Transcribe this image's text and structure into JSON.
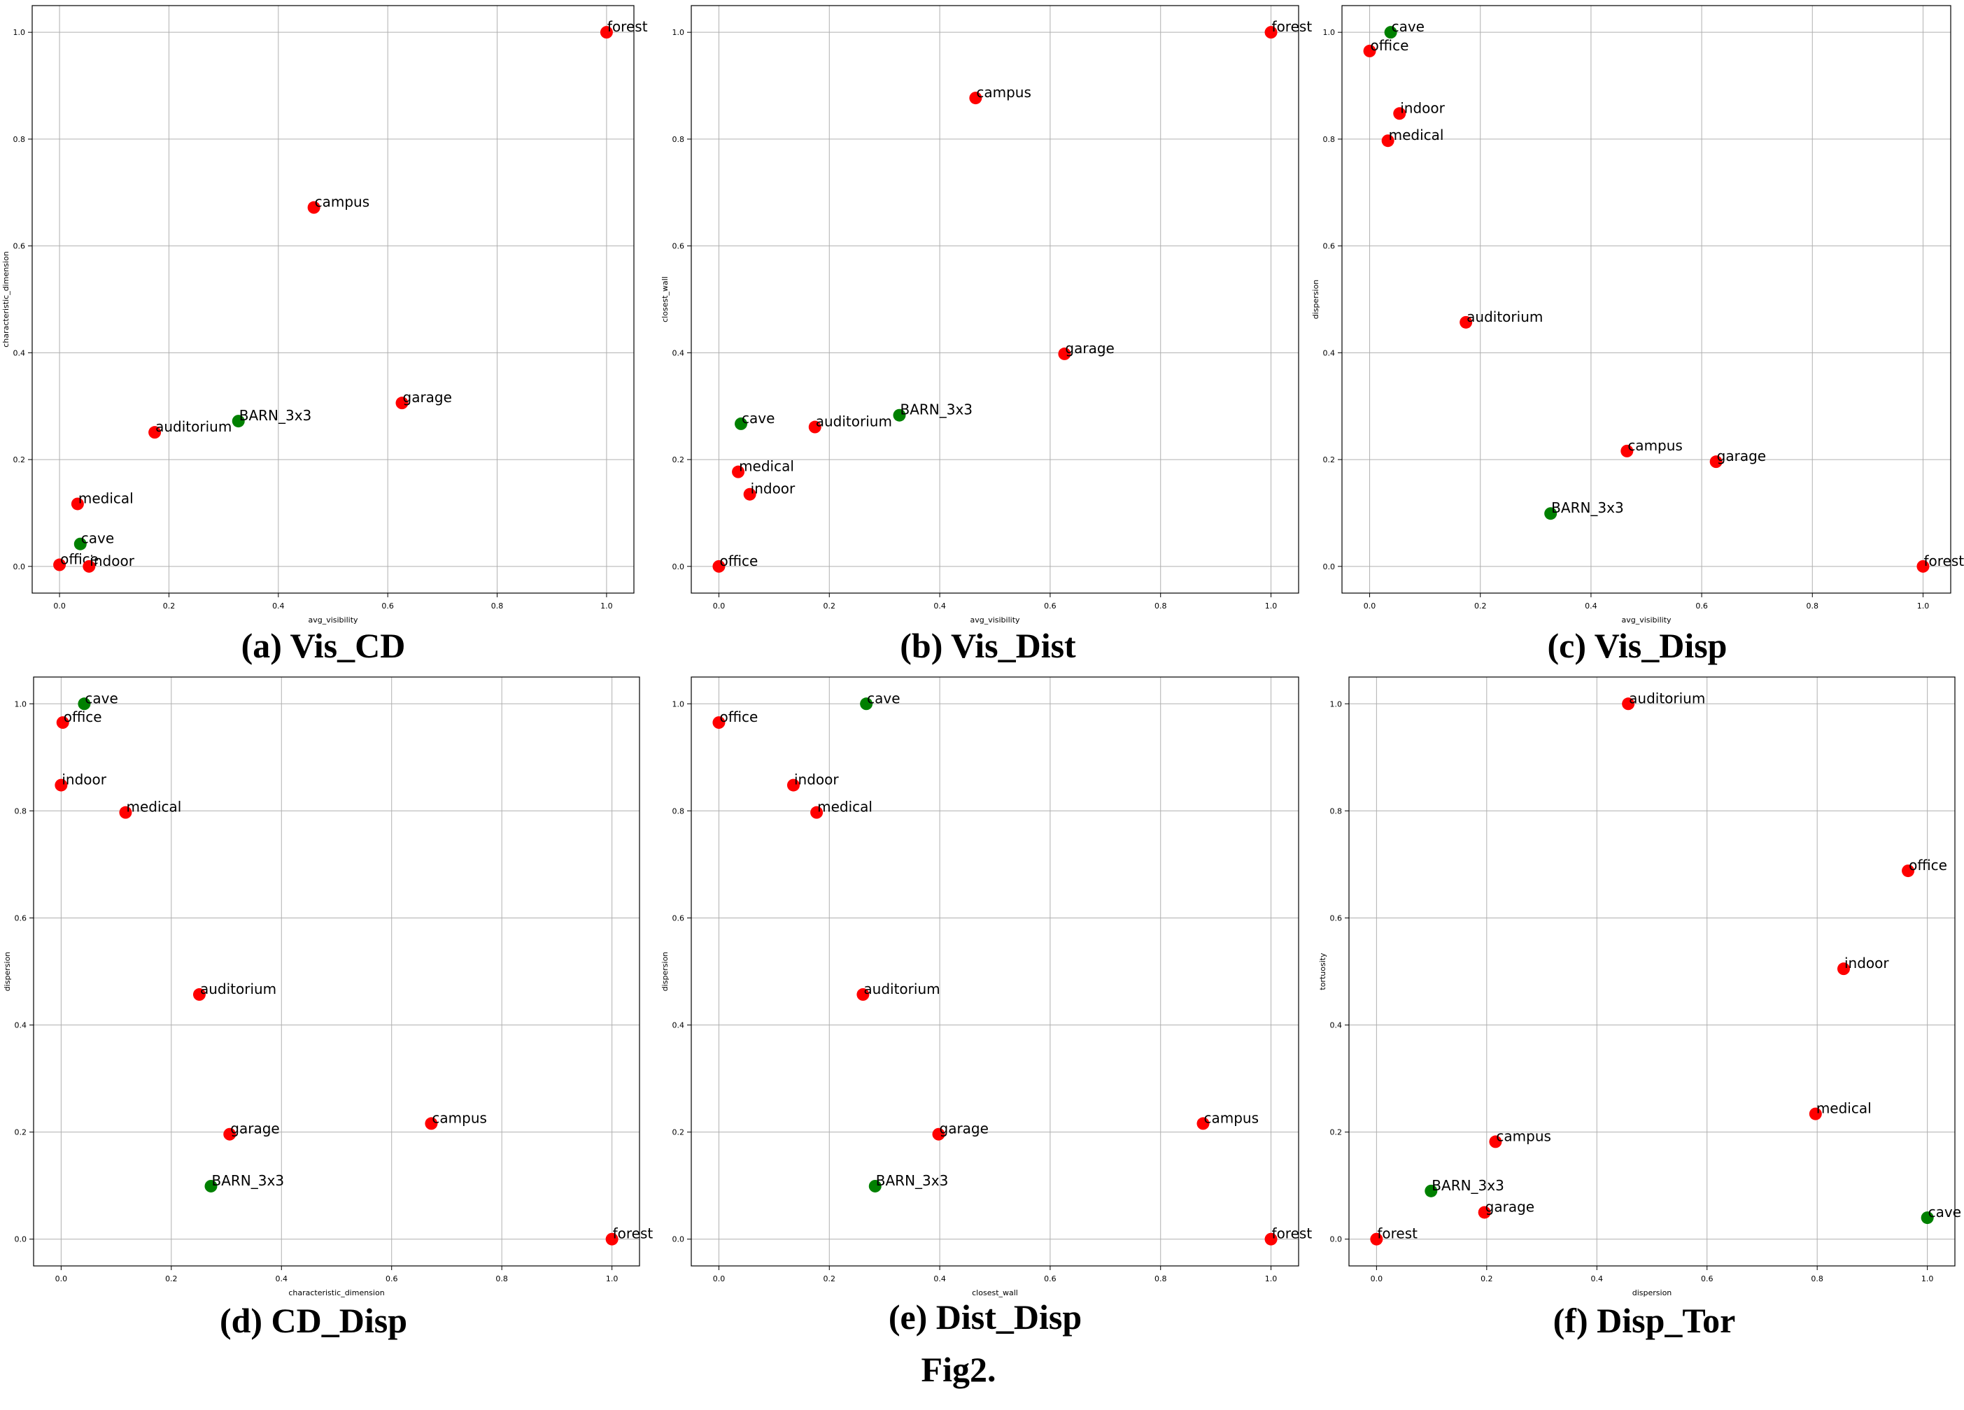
{
  "figure_title": "Fig2.",
  "colors": {
    "red": "#ff0000",
    "green": "#008000"
  },
  "chart_data": [
    {
      "type": "scatter",
      "caption": "(a) Vis_CD",
      "xlabel": "avg_visibility",
      "ylabel": "characteristic_dimension",
      "xlim": [
        -0.05,
        1.05
      ],
      "ylim": [
        -0.05,
        1.05
      ],
      "xticks": [
        "0.0",
        "0.2",
        "0.4",
        "0.6",
        "0.8",
        "1.0"
      ],
      "yticks": [
        "0.0",
        "0.2",
        "0.4",
        "0.6",
        "0.8",
        "1.0"
      ],
      "grid": true,
      "points": [
        {
          "label": "forest",
          "x": 1.0,
          "y": 1.0,
          "color": "red"
        },
        {
          "label": "campus",
          "x": 0.465,
          "y": 0.672,
          "color": "red"
        },
        {
          "label": "garage",
          "x": 0.626,
          "y": 0.306,
          "color": "red"
        },
        {
          "label": "BARN_3x3",
          "x": 0.327,
          "y": 0.272,
          "color": "green"
        },
        {
          "label": "auditorium",
          "x": 0.174,
          "y": 0.251,
          "color": "red"
        },
        {
          "label": "medical",
          "x": 0.033,
          "y": 0.117,
          "color": "red"
        },
        {
          "label": "cave",
          "x": 0.038,
          "y": 0.042,
          "color": "green"
        },
        {
          "label": "office",
          "x": 0.0,
          "y": 0.003,
          "color": "red"
        },
        {
          "label": "indoor",
          "x": 0.054,
          "y": 0.0,
          "color": "red"
        }
      ]
    },
    {
      "type": "scatter",
      "caption": "(b) Vis_Dist",
      "xlabel": "avg_visibility",
      "ylabel": "closest_wall",
      "xlim": [
        -0.05,
        1.05
      ],
      "ylim": [
        -0.05,
        1.05
      ],
      "xticks": [
        "0.0",
        "0.2",
        "0.4",
        "0.6",
        "0.8",
        "1.0"
      ],
      "yticks": [
        "0.0",
        "0.2",
        "0.4",
        "0.6",
        "0.8",
        "1.0"
      ],
      "grid": true,
      "points": [
        {
          "label": "forest",
          "x": 1.0,
          "y": 1.0,
          "color": "red"
        },
        {
          "label": "campus",
          "x": 0.465,
          "y": 0.877,
          "color": "red"
        },
        {
          "label": "garage",
          "x": 0.626,
          "y": 0.398,
          "color": "red"
        },
        {
          "label": "BARN_3x3",
          "x": 0.327,
          "y": 0.283,
          "color": "green"
        },
        {
          "label": "cave",
          "x": 0.04,
          "y": 0.267,
          "color": "green"
        },
        {
          "label": "auditorium",
          "x": 0.174,
          "y": 0.261,
          "color": "red"
        },
        {
          "label": "medical",
          "x": 0.035,
          "y": 0.177,
          "color": "red"
        },
        {
          "label": "indoor",
          "x": 0.056,
          "y": 0.135,
          "color": "red"
        },
        {
          "label": "office",
          "x": 0.0,
          "y": 0.0,
          "color": "red"
        }
      ]
    },
    {
      "type": "scatter",
      "caption": "(c) Vis_Disp",
      "xlabel": "avg_visibility",
      "ylabel": "dispersion",
      "xlim": [
        -0.05,
        1.05
      ],
      "ylim": [
        -0.05,
        1.05
      ],
      "xticks": [
        "0.0",
        "0.2",
        "0.4",
        "0.6",
        "0.8",
        "1.0"
      ],
      "yticks": [
        "0.0",
        "0.2",
        "0.4",
        "0.6",
        "0.8",
        "1.0"
      ],
      "grid": true,
      "points": [
        {
          "label": "cave",
          "x": 0.038,
          "y": 1.0,
          "color": "green"
        },
        {
          "label": "office",
          "x": 0.0,
          "y": 0.965,
          "color": "red"
        },
        {
          "label": "indoor",
          "x": 0.054,
          "y": 0.848,
          "color": "red"
        },
        {
          "label": "medical",
          "x": 0.033,
          "y": 0.797,
          "color": "red"
        },
        {
          "label": "auditorium",
          "x": 0.174,
          "y": 0.457,
          "color": "red"
        },
        {
          "label": "campus",
          "x": 0.465,
          "y": 0.216,
          "color": "red"
        },
        {
          "label": "garage",
          "x": 0.626,
          "y": 0.196,
          "color": "red"
        },
        {
          "label": "BARN_3x3",
          "x": 0.327,
          "y": 0.099,
          "color": "green"
        },
        {
          "label": "forest",
          "x": 1.0,
          "y": 0.0,
          "color": "red"
        }
      ]
    },
    {
      "type": "scatter",
      "caption": "(d) CD_Disp",
      "xlabel": "characteristic_dimension",
      "ylabel": "dispersion",
      "xlim": [
        -0.05,
        1.05
      ],
      "ylim": [
        -0.05,
        1.05
      ],
      "xticks": [
        "0.0",
        "0.2",
        "0.4",
        "0.6",
        "0.8",
        "1.0"
      ],
      "yticks": [
        "0.0",
        "0.2",
        "0.4",
        "0.6",
        "0.8",
        "1.0"
      ],
      "grid": true,
      "points": [
        {
          "label": "cave",
          "x": 0.042,
          "y": 1.0,
          "color": "green"
        },
        {
          "label": "office",
          "x": 0.003,
          "y": 0.965,
          "color": "red"
        },
        {
          "label": "indoor",
          "x": 0.0,
          "y": 0.848,
          "color": "red"
        },
        {
          "label": "medical",
          "x": 0.117,
          "y": 0.797,
          "color": "red"
        },
        {
          "label": "auditorium",
          "x": 0.251,
          "y": 0.457,
          "color": "red"
        },
        {
          "label": "campus",
          "x": 0.672,
          "y": 0.216,
          "color": "red"
        },
        {
          "label": "garage",
          "x": 0.306,
          "y": 0.196,
          "color": "red"
        },
        {
          "label": "BARN_3x3",
          "x": 0.272,
          "y": 0.099,
          "color": "green"
        },
        {
          "label": "forest",
          "x": 1.0,
          "y": 0.0,
          "color": "red"
        }
      ]
    },
    {
      "type": "scatter",
      "caption": "(e) Dist_Disp",
      "xlabel": "closest_wall",
      "ylabel": "dispersion",
      "xlim": [
        -0.05,
        1.05
      ],
      "ylim": [
        -0.05,
        1.05
      ],
      "xticks": [
        "0.0",
        "0.2",
        "0.4",
        "0.6",
        "0.8",
        "1.0"
      ],
      "yticks": [
        "0.0",
        "0.2",
        "0.4",
        "0.6",
        "0.8",
        "1.0"
      ],
      "grid": true,
      "points": [
        {
          "label": "cave",
          "x": 0.267,
          "y": 1.0,
          "color": "green"
        },
        {
          "label": "office",
          "x": 0.0,
          "y": 0.965,
          "color": "red"
        },
        {
          "label": "indoor",
          "x": 0.135,
          "y": 0.848,
          "color": "red"
        },
        {
          "label": "medical",
          "x": 0.177,
          "y": 0.797,
          "color": "red"
        },
        {
          "label": "auditorium",
          "x": 0.261,
          "y": 0.457,
          "color": "red"
        },
        {
          "label": "campus",
          "x": 0.877,
          "y": 0.216,
          "color": "red"
        },
        {
          "label": "garage",
          "x": 0.398,
          "y": 0.196,
          "color": "red"
        },
        {
          "label": "BARN_3x3",
          "x": 0.283,
          "y": 0.099,
          "color": "green"
        },
        {
          "label": "forest",
          "x": 1.0,
          "y": 0.0,
          "color": "red"
        }
      ]
    },
    {
      "type": "scatter",
      "caption": "(f) Disp_Tor",
      "xlabel": "dispersion",
      "ylabel": "tortuosity",
      "xlim": [
        -0.05,
        1.05
      ],
      "ylim": [
        -0.05,
        1.05
      ],
      "xticks": [
        "0.0",
        "0.2",
        "0.4",
        "0.6",
        "0.8",
        "1.0"
      ],
      "yticks": [
        "0.0",
        "0.2",
        "0.4",
        "0.6",
        "0.8",
        "1.0"
      ],
      "grid": true,
      "points": [
        {
          "label": "auditorium",
          "x": 0.457,
          "y": 1.0,
          "color": "red"
        },
        {
          "label": "office",
          "x": 0.965,
          "y": 0.688,
          "color": "red"
        },
        {
          "label": "indoor",
          "x": 0.848,
          "y": 0.505,
          "color": "red"
        },
        {
          "label": "medical",
          "x": 0.797,
          "y": 0.234,
          "color": "red"
        },
        {
          "label": "campus",
          "x": 0.216,
          "y": 0.182,
          "color": "red"
        },
        {
          "label": "BARN_3x3",
          "x": 0.099,
          "y": 0.09,
          "color": "green"
        },
        {
          "label": "garage",
          "x": 0.196,
          "y": 0.05,
          "color": "red"
        },
        {
          "label": "cave",
          "x": 1.0,
          "y": 0.04,
          "color": "green"
        },
        {
          "label": "forest",
          "x": 0.0,
          "y": 0.0,
          "color": "red"
        }
      ]
    }
  ]
}
